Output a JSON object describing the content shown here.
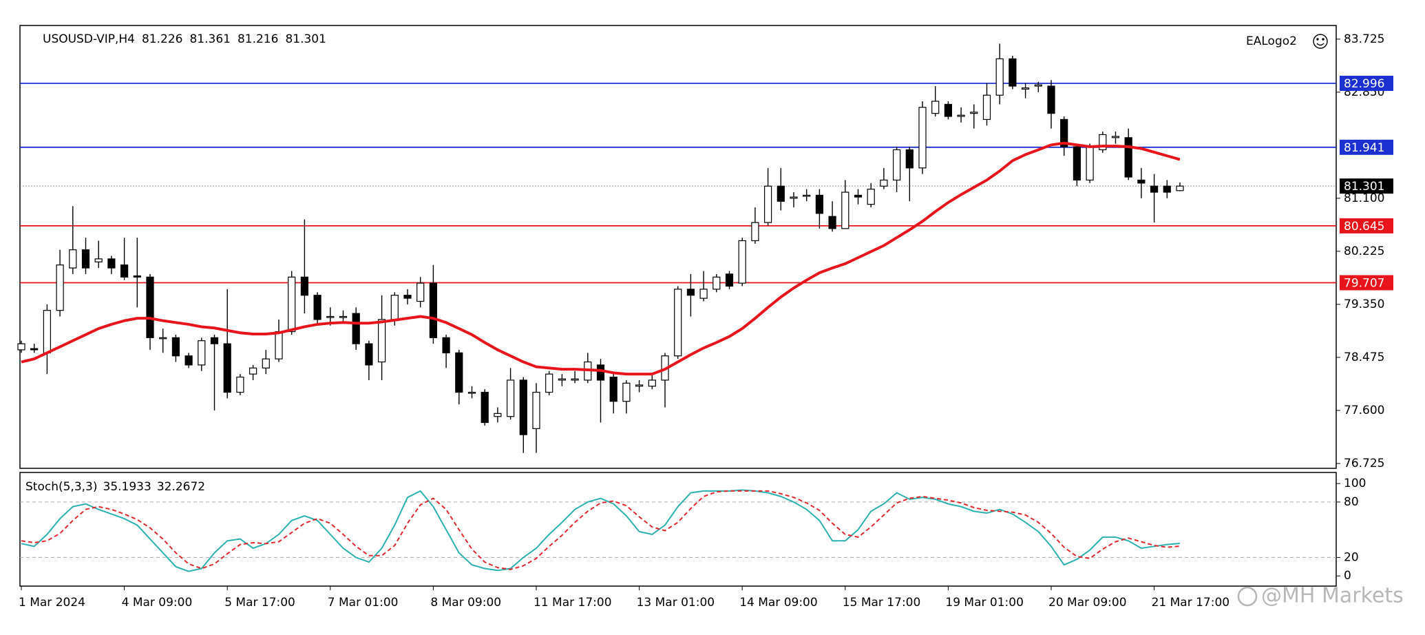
{
  "chart_data": [
    {
      "type": "candlestick",
      "title": "USOUSD-VIP,H4",
      "logo": "EALogo2",
      "watermark": "@MH Markets",
      "categories": [
        "1 Mar 2024",
        null,
        null,
        null,
        null,
        null,
        null,
        null,
        "4 Mar 09:00",
        null,
        null,
        null,
        null,
        null,
        null,
        null,
        "5 Mar 17:00",
        null,
        null,
        null,
        null,
        null,
        null,
        null,
        "7 Mar 01:00",
        null,
        null,
        null,
        null,
        null,
        null,
        null,
        "8 Mar 09:00",
        null,
        null,
        null,
        null,
        null,
        null,
        null,
        "11 Mar 17:00",
        null,
        null,
        null,
        null,
        null,
        null,
        null,
        "13 Mar 01:00",
        null,
        null,
        null,
        null,
        null,
        null,
        null,
        "14 Mar 09:00",
        null,
        null,
        null,
        null,
        null,
        null,
        null,
        "15 Mar 17:00",
        null,
        null,
        null,
        null,
        null,
        null,
        null,
        "19 Mar 01:00",
        null,
        null,
        null,
        null,
        null,
        null,
        null,
        "20 Mar 09:00",
        null,
        null,
        null,
        null,
        null,
        null,
        null,
        "21 Mar 17:00",
        null,
        null
      ],
      "open": [
        78.6,
        78.62,
        78.55,
        79.25,
        79.95,
        80.25,
        80.05,
        80.1,
        80.0,
        79.82,
        79.8,
        78.8,
        78.8,
        78.5,
        78.35,
        78.8,
        78.7,
        77.9,
        78.2,
        78.3,
        78.45,
        78.9,
        79.8,
        79.5,
        79.15,
        79.15,
        79.2,
        78.7,
        78.4,
        79.1,
        79.5,
        79.4,
        79.7,
        78.8,
        78.55,
        77.9,
        77.9,
        77.5,
        77.5,
        78.1,
        77.3,
        77.9,
        78.1,
        78.1,
        78.1,
        78.35,
        78.15,
        77.75,
        78.0,
        78.0,
        78.1,
        78.5,
        79.6,
        79.45,
        79.6,
        79.85,
        79.7,
        80.4,
        80.7,
        81.3,
        81.1,
        81.15,
        81.15,
        80.8,
        80.6,
        81.15,
        81.0,
        81.3,
        81.4,
        81.9,
        81.6,
        82.5,
        82.65,
        82.45,
        82.5,
        82.4,
        82.8,
        83.4,
        82.9,
        82.95,
        82.95,
        82.4,
        81.95,
        81.4,
        81.9,
        82.1,
        82.1,
        81.4,
        81.3,
        81.3,
        81.226
      ],
      "high": [
        78.75,
        78.7,
        79.35,
        80.25,
        80.97,
        80.45,
        80.4,
        80.15,
        80.45,
        80.45,
        79.85,
        78.95,
        78.85,
        78.55,
        78.8,
        78.85,
        79.6,
        78.2,
        78.35,
        78.6,
        79.1,
        79.9,
        80.75,
        79.55,
        79.3,
        79.25,
        79.3,
        78.75,
        79.5,
        79.55,
        79.6,
        79.8,
        80.0,
        78.85,
        78.6,
        78.0,
        77.95,
        77.65,
        78.3,
        78.15,
        78.05,
        78.25,
        78.2,
        78.25,
        78.55,
        78.45,
        78.2,
        78.1,
        78.1,
        78.2,
        78.55,
        79.65,
        79.85,
        79.9,
        79.85,
        79.9,
        80.45,
        80.95,
        81.6,
        81.6,
        81.2,
        81.25,
        81.25,
        81.05,
        81.4,
        81.25,
        81.35,
        81.6,
        81.95,
        81.95,
        82.7,
        82.95,
        82.7,
        82.6,
        82.65,
        83.0,
        83.65,
        83.45,
        83.0,
        83.02,
        83.05,
        82.45,
        82.0,
        82.0,
        82.2,
        82.2,
        82.25,
        81.6,
        81.5,
        81.4,
        81.361
      ],
      "low": [
        78.55,
        78.55,
        78.2,
        79.15,
        79.85,
        79.85,
        79.95,
        79.85,
        79.75,
        79.3,
        78.6,
        78.55,
        78.4,
        78.3,
        78.25,
        77.6,
        77.8,
        77.85,
        78.1,
        78.2,
        78.4,
        78.85,
        79.2,
        79.0,
        79.0,
        79.05,
        78.6,
        78.1,
        78.1,
        79.0,
        79.35,
        79.3,
        78.7,
        78.3,
        77.7,
        77.8,
        77.35,
        77.4,
        77.45,
        76.9,
        76.9,
        77.85,
        78.0,
        78.05,
        78.05,
        77.4,
        77.55,
        77.55,
        77.9,
        77.95,
        77.65,
        78.45,
        79.15,
        79.4,
        79.55,
        79.6,
        79.65,
        80.35,
        80.65,
        80.9,
        80.95,
        81.05,
        80.6,
        80.55,
        80.6,
        81.0,
        80.95,
        81.25,
        81.2,
        81.05,
        81.5,
        82.45,
        82.4,
        82.35,
        82.25,
        82.3,
        82.65,
        82.9,
        82.75,
        82.85,
        82.25,
        81.8,
        81.3,
        81.35,
        81.85,
        82.0,
        81.4,
        81.1,
        80.7,
        81.1,
        81.216
      ],
      "close": [
        78.7,
        78.6,
        79.25,
        80.0,
        80.25,
        79.95,
        80.1,
        79.95,
        79.8,
        79.8,
        78.8,
        78.8,
        78.5,
        78.35,
        78.75,
        78.7,
        77.9,
        78.15,
        78.3,
        78.45,
        78.9,
        79.8,
        79.5,
        79.1,
        79.15,
        79.15,
        78.7,
        78.35,
        79.1,
        79.5,
        79.45,
        79.7,
        78.8,
        78.55,
        77.9,
        77.9,
        77.4,
        77.55,
        78.1,
        77.2,
        77.9,
        78.2,
        78.12,
        78.12,
        78.4,
        78.1,
        77.75,
        78.05,
        78.02,
        78.1,
        78.5,
        79.6,
        79.5,
        79.6,
        79.8,
        79.65,
        80.4,
        80.7,
        81.3,
        81.05,
        81.12,
        81.15,
        80.85,
        80.6,
        81.2,
        81.12,
        81.25,
        81.4,
        81.9,
        81.6,
        82.6,
        82.7,
        82.45,
        82.47,
        82.52,
        82.8,
        83.4,
        82.95,
        82.92,
        82.97,
        82.5,
        81.95,
        81.4,
        81.95,
        82.15,
        82.12,
        81.45,
        81.35,
        81.2,
        81.2,
        81.301
      ],
      "up_color": "#ffffff",
      "down_color": "#000000",
      "ma": {
        "color": "#e8141c",
        "values": [
          78.4,
          78.45,
          78.55,
          78.65,
          78.75,
          78.85,
          78.95,
          79.02,
          79.08,
          79.12,
          79.12,
          79.08,
          79.05,
          79.02,
          78.98,
          78.96,
          78.92,
          78.88,
          78.86,
          78.86,
          78.88,
          78.93,
          78.98,
          79.02,
          79.04,
          79.05,
          79.04,
          79.04,
          79.06,
          79.09,
          79.12,
          79.15,
          79.12,
          79.05,
          78.95,
          78.85,
          78.72,
          78.6,
          78.5,
          78.4,
          78.32,
          78.3,
          78.28,
          78.28,
          78.27,
          78.26,
          78.22,
          78.2,
          78.2,
          78.2,
          78.28,
          78.4,
          78.52,
          78.63,
          78.72,
          78.82,
          78.95,
          79.12,
          79.3,
          79.47,
          79.62,
          79.75,
          79.87,
          79.95,
          80.02,
          80.12,
          80.22,
          80.32,
          80.45,
          80.58,
          80.72,
          80.88,
          81.03,
          81.16,
          81.28,
          81.4,
          81.55,
          81.72,
          81.82,
          81.9,
          81.98,
          82.01,
          81.98,
          81.95,
          81.96,
          81.96,
          81.95,
          81.92,
          81.86,
          81.8,
          81.74
        ]
      },
      "levels": [
        {
          "value": 82.996,
          "color": "#1c2fd0"
        },
        {
          "value": 81.941,
          "color": "#1c2fd0"
        },
        {
          "value": 80.645,
          "color": "#e8141c"
        },
        {
          "value": 79.707,
          "color": "#e8141c"
        }
      ],
      "current_price": 81.301,
      "ylim": [
        76.645,
        83.95
      ],
      "yticks": [
        83.725,
        {
          "value": 82.85,
          "label": "82.850"
        },
        {
          "value": 81.1,
          "label": "81.100"
        },
        80.225,
        {
          "value": 79.35,
          "label": "79.350"
        },
        78.475,
        {
          "value": 77.6,
          "label": "77.600"
        },
        76.725
      ]
    },
    {
      "type": "line",
      "title": "Stoch(5,3,3)",
      "series": [
        {
          "color": "#2bb0b0",
          "values": [
            35,
            32,
            45,
            62,
            75,
            78,
            72,
            67,
            62,
            55,
            40,
            25,
            10,
            5,
            8,
            25,
            38,
            40,
            30,
            35,
            45,
            60,
            65,
            60,
            45,
            30,
            20,
            15,
            30,
            55,
            85,
            92,
            75,
            50,
            25,
            12,
            8,
            6,
            8,
            20,
            30,
            45,
            58,
            72,
            80,
            84,
            78,
            65,
            48,
            45,
            55,
            75,
            90,
            92,
            92,
            92,
            93,
            92,
            90,
            86,
            80,
            72,
            60,
            38,
            38,
            50,
            70,
            78,
            90,
            83,
            85,
            83,
            78,
            75,
            70,
            68,
            72,
            67,
            58,
            48,
            32,
            12,
            18,
            28,
            42,
            42,
            38,
            30,
            32,
            34,
            35.1933
          ]
        },
        {
          "color": "#e0282d",
          "dash": true,
          "values": [
            38,
            36,
            38,
            46,
            60,
            72,
            75,
            72,
            67,
            61,
            52,
            40,
            25,
            13,
            8,
            13,
            24,
            34,
            36,
            35,
            37,
            47,
            57,
            62,
            57,
            45,
            32,
            22,
            22,
            33,
            57,
            77,
            84,
            72,
            50,
            29,
            15,
            9,
            7,
            11,
            19,
            32,
            44,
            58,
            70,
            79,
            81,
            76,
            64,
            53,
            49,
            58,
            73,
            86,
            91,
            92,
            92,
            92,
            92,
            89,
            85,
            79,
            71,
            57,
            45,
            42,
            53,
            66,
            79,
            84,
            86,
            84,
            82,
            79,
            74,
            71,
            70,
            69,
            66,
            58,
            46,
            31,
            21,
            19,
            29,
            37,
            41,
            37,
            33,
            31,
            32.2672
          ]
        }
      ],
      "levels": [
        80,
        20
      ],
      "ylim": [
        -11,
        112
      ],
      "yticks": [
        100,
        80,
        20,
        0
      ]
    }
  ]
}
